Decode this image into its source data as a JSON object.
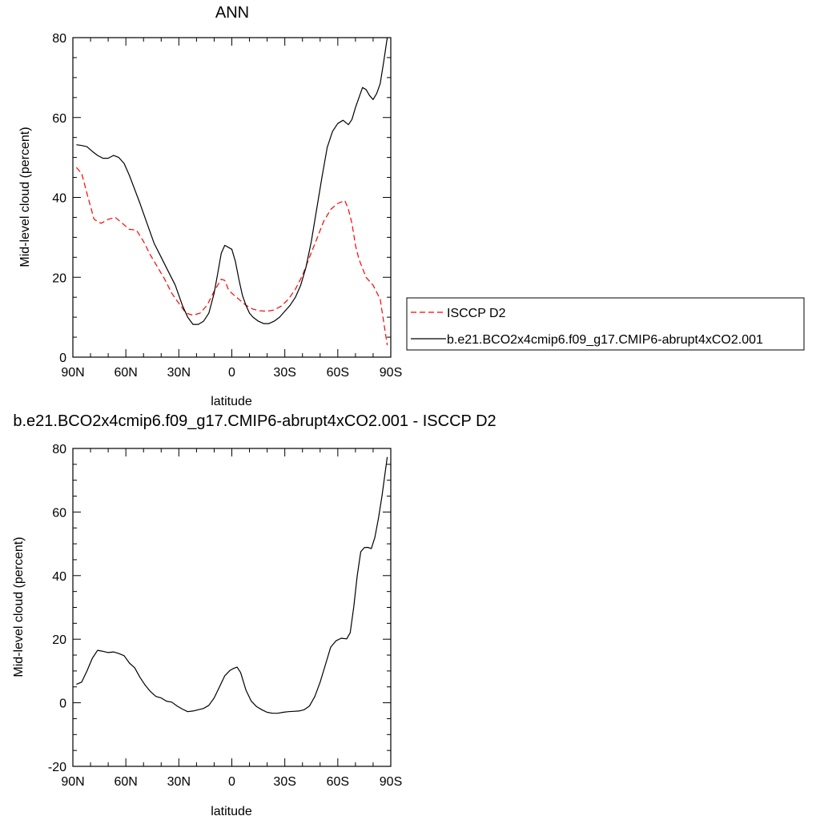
{
  "chart_data": [
    {
      "type": "line",
      "title": "ANN",
      "xlabel": "latitude",
      "ylabel": "Mid-level cloud (percent)",
      "xlim": [
        90,
        -90
      ],
      "ylim": [
        0,
        80
      ],
      "x_ticks": [
        90,
        60,
        30,
        0,
        -30,
        -60,
        -90
      ],
      "x_tick_labels": [
        "90N",
        "60N",
        "30N",
        "0",
        "30S",
        "60S",
        "90S"
      ],
      "y_ticks": [
        0,
        20,
        40,
        60,
        80
      ],
      "y_tick_labels": [
        "0",
        "20",
        "40",
        "60",
        "80"
      ],
      "grid": false,
      "legend_position": "right",
      "series": [
        {
          "name": "ISCCP D2",
          "color": "#ff0000",
          "dash": "dashed",
          "x": [
            88,
            85,
            82,
            78,
            74,
            70,
            66,
            62,
            58,
            54,
            50,
            46,
            42,
            38,
            34,
            30,
            26,
            22,
            18,
            14,
            10,
            6,
            4,
            2,
            0,
            -4,
            -8,
            -12,
            -16,
            -20,
            -24,
            -28,
            -32,
            -36,
            -40,
            -44,
            -48,
            -52,
            -56,
            -60,
            -64,
            -66,
            -68,
            -70,
            -72,
            -76,
            -80,
            -84,
            -88
          ],
          "y": [
            47.5,
            46,
            41,
            34.5,
            33.5,
            34.5,
            35,
            33.5,
            32,
            31.8,
            29,
            25.5,
            22.5,
            19.5,
            16,
            13.5,
            11,
            10.5,
            11,
            13,
            16.5,
            19.5,
            19.2,
            17,
            16,
            14.5,
            13,
            12,
            11.6,
            11.5,
            11.8,
            12.8,
            14.5,
            17,
            20.5,
            25,
            29.5,
            34,
            37,
            38.5,
            39.2,
            37,
            33.5,
            28,
            24.5,
            20,
            18,
            14.5,
            3
          ]
        },
        {
          "name": "b.e21.BCO2x4cmip6.f09_g17.CMIP6-abrupt4xCO2.001",
          "color": "#000000",
          "dash": "solid",
          "x": [
            88,
            85,
            82,
            79,
            76,
            73,
            70,
            67,
            64,
            61,
            58,
            55,
            52,
            48,
            44,
            40,
            36,
            32,
            30,
            28,
            25,
            22,
            19,
            16,
            13,
            10,
            8,
            6,
            4,
            2,
            0,
            -2,
            -4,
            -6,
            -8,
            -10,
            -12,
            -15,
            -18,
            -21,
            -24,
            -27,
            -30,
            -33,
            -36,
            -39,
            -42,
            -45,
            -48,
            -51,
            -54,
            -57,
            -60,
            -63,
            -66,
            -68,
            -70,
            -72,
            -74,
            -76,
            -78,
            -80,
            -82,
            -84,
            -86,
            -88
          ],
          "y": [
            53.2,
            53,
            52.7,
            51.5,
            50.5,
            49.8,
            49.8,
            50.5,
            50,
            48.5,
            45.5,
            42,
            38.5,
            33.5,
            28.5,
            25,
            21.5,
            18,
            15.5,
            13,
            10,
            8.2,
            8.2,
            9,
            11,
            16,
            21,
            26,
            28,
            27.5,
            27,
            24,
            19.5,
            15.5,
            13,
            11,
            10,
            9,
            8.4,
            8.4,
            9,
            10,
            11.5,
            13,
            15,
            18,
            22.5,
            29,
            37,
            45,
            52.5,
            56.5,
            58.5,
            59.3,
            58.2,
            59.5,
            62.5,
            65,
            67.5,
            67,
            65.5,
            64.5,
            66,
            68.5,
            74,
            80
          ]
        }
      ]
    },
    {
      "type": "line",
      "title": "b.e21.BCO2x4cmip6.f09_g17.CMIP6-abrupt4xCO2.001 - ISCCP D2",
      "xlabel": "latitude",
      "ylabel": "Mid-level cloud (percent)",
      "xlim": [
        90,
        -90
      ],
      "ylim": [
        -20,
        80
      ],
      "x_ticks": [
        90,
        60,
        30,
        0,
        -30,
        -60,
        -90
      ],
      "x_tick_labels": [
        "90N",
        "60N",
        "30N",
        "0",
        "30S",
        "60S",
        "90S"
      ],
      "y_ticks": [
        -20,
        0,
        20,
        40,
        60,
        80
      ],
      "y_tick_labels": [
        "-20",
        "0",
        "20",
        "40",
        "60",
        "80"
      ],
      "grid": false,
      "series": [
        {
          "color": "#000000",
          "dash": "solid",
          "x": [
            88,
            85,
            82,
            79,
            76,
            73,
            70,
            67,
            64,
            61,
            58,
            55,
            52,
            49,
            46,
            43,
            40,
            37,
            34,
            31,
            28,
            25,
            22,
            19,
            16,
            13,
            10,
            7,
            4,
            1,
            -1,
            -3,
            -5,
            -8,
            -11,
            -14,
            -17,
            -20,
            -23,
            -26,
            -29,
            -32,
            -35,
            -38,
            -41,
            -44,
            -47,
            -50,
            -53,
            -56,
            -59,
            -62,
            -65,
            -67,
            -69,
            -71,
            -73,
            -75,
            -77,
            -79,
            -81,
            -83,
            -85,
            -88
          ],
          "y": [
            5.8,
            6.5,
            10,
            14,
            16.5,
            16.2,
            15.8,
            16,
            15.5,
            14.8,
            12.5,
            11,
            8,
            5.5,
            3.5,
            2,
            1.5,
            0.5,
            0.2,
            -1,
            -2,
            -2.8,
            -2.6,
            -2.2,
            -1.8,
            -0.8,
            1.5,
            5,
            8.5,
            10.2,
            10.8,
            11.2,
            9.5,
            4,
            0.5,
            -1.2,
            -2.2,
            -3,
            -3.3,
            -3.3,
            -3,
            -2.8,
            -2.7,
            -2.6,
            -2.2,
            -1,
            2,
            6.5,
            12,
            17.5,
            19.5,
            20.3,
            20.1,
            22,
            30,
            40,
            47.5,
            48.8,
            48.9,
            48.5,
            52,
            58,
            65,
            77.3
          ]
        }
      ]
    }
  ]
}
